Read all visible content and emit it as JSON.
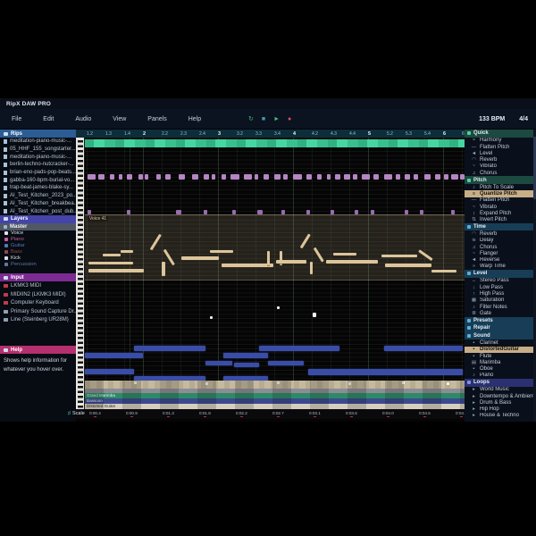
{
  "app": {
    "title": "RipX DAW PRO",
    "bpm": "133 BPM",
    "time_sig": "4/4"
  },
  "menu_items": [
    "File",
    "Edit",
    "Audio",
    "View",
    "Panels",
    "Help"
  ],
  "transport": [
    {
      "name": "loop-button",
      "glyph": "↻",
      "color": "#49b86e"
    },
    {
      "name": "stop-button",
      "glyph": "■",
      "color": "#3f9fae"
    },
    {
      "name": "play-button",
      "glyph": "►",
      "color": "#43c272"
    },
    {
      "name": "record-button",
      "glyph": "●",
      "color": "#d8515e"
    }
  ],
  "left_sidebar": {
    "rips_header": "Rips",
    "rips_header_color": "#2b5c94",
    "rips": [
      "meditation-piano-music-...",
      "05_HHF_155_songstarter...",
      "meditation-piano-music-...",
      "berlin-techno-nutcracker-...",
      "brian-eno-pads-pop-beats...",
      "gabba-160-bpm-burial-vo...",
      "trap-beat-james-blake-sy...",
      "AI_Test_Kitchen_2023_po...",
      "AI_Test_Kitchen_breakbea...",
      "AI_Test_Kitchen_post_dub..."
    ],
    "layers_header": "Layers",
    "layers_header_color": "#4444aa",
    "master": "Master",
    "layers": [
      {
        "label": "Voice",
        "color": "#dde4ee"
      },
      {
        "label": "Piano",
        "color": "#c75f9d"
      },
      {
        "label": "Guitar",
        "color": "#5a77b8"
      },
      {
        "label": "Bass",
        "color": "#8f4848"
      },
      {
        "label": "Kick",
        "color": "#d9dee8"
      },
      {
        "label": "Percussion",
        "color": "#64789e"
      }
    ],
    "input_header": "Input",
    "input_header_color": "#7c2b92",
    "inputs": [
      {
        "label": "LKMK3 MIDI",
        "icon_color": "#c23a4a"
      },
      {
        "label": "MIDIIN2 (LKMK3 MIDI)",
        "icon_color": "#c23a4a"
      },
      {
        "label": "Computer Keyboard",
        "icon_color": "#c23a4a"
      },
      {
        "label": "Primary Sound Capture Dr...",
        "icon_color": "#8fa0b4"
      },
      {
        "label": "Line (Steinberg UR28M)",
        "icon_color": "#8fa0b4"
      }
    ],
    "help_header": "Help",
    "help_header_color": "#b5306f",
    "help_text": "Shows help information for whatever you hover over."
  },
  "right_sidebar": {
    "sections": [
      {
        "header": "Quick",
        "hdr_color": "#1c4a40",
        "ico_color": "#4fd0a0",
        "items": [
          {
            "label": "Harmony",
            "glyph": "≈"
          },
          {
            "label": "Flatten Pitch",
            "glyph": "—"
          },
          {
            "label": "Level",
            "glyph": "◄"
          },
          {
            "label": "Reverb",
            "glyph": "◠"
          },
          {
            "label": "Vibrato",
            "glyph": "~"
          },
          {
            "label": "Chorus",
            "glyph": "♫"
          }
        ]
      },
      {
        "header": "Pitch",
        "hdr_color": "#1c4a40",
        "ico_color": "#4fd0a0",
        "items": [
          {
            "label": "Pitch To Scale",
            "glyph": "♪"
          },
          {
            "label": "Quantize Pitch",
            "glyph": "≡",
            "selected": true
          },
          {
            "label": "Flatten Pitch",
            "glyph": "—"
          },
          {
            "label": "Vibrato",
            "glyph": "~"
          },
          {
            "label": "Expand Pitch",
            "glyph": "↕"
          },
          {
            "label": "Invert Pitch",
            "glyph": "⇅"
          }
        ]
      },
      {
        "header": "Time",
        "hdr_color": "#173e56",
        "ico_color": "#5ab0d8",
        "items": [
          {
            "label": "Reverb",
            "glyph": "◠"
          },
          {
            "label": "Delay",
            "glyph": "≋"
          },
          {
            "label": "Chorus",
            "glyph": "♫"
          },
          {
            "label": "Flanger",
            "glyph": "~"
          },
          {
            "label": "Reverse",
            "glyph": "◄"
          },
          {
            "label": "Warp Time",
            "glyph": "»"
          }
        ]
      },
      {
        "header": "Level",
        "hdr_color": "#173e56",
        "ico_color": "#5ab0d8",
        "items": [
          {
            "label": "Stereo Pass",
            "glyph": "↔"
          },
          {
            "label": "Low Pass",
            "glyph": "↓"
          },
          {
            "label": "High Pass",
            "glyph": "↑"
          },
          {
            "label": "Saturation",
            "glyph": "▦"
          },
          {
            "label": "Filter Notes",
            "glyph": "♪"
          },
          {
            "label": "Gate",
            "glyph": "≣"
          }
        ]
      },
      {
        "header": "Presets",
        "hdr_color": "#173e56",
        "ico_color": "#5ab0d8",
        "items": []
      },
      {
        "header": "Repair",
        "hdr_color": "#173e56",
        "ico_color": "#5ab0d8",
        "items": []
      },
      {
        "header": "Sound",
        "hdr_color": "#173e56",
        "ico_color": "#5ab0d8",
        "items": [
          {
            "label": "Clarinet",
            "glyph": "▪"
          },
          {
            "label": "DistortedGuitar",
            "glyph": "▪",
            "selected": true
          },
          {
            "label": "Flute",
            "glyph": "▪"
          },
          {
            "label": "Marimba",
            "glyph": "▤"
          },
          {
            "label": "Oboe",
            "glyph": "▪"
          },
          {
            "label": "Piano",
            "glyph": "♪"
          }
        ]
      },
      {
        "header": "Loops",
        "hdr_color": "#2a3070",
        "ico_color": "#8090e0",
        "items": [
          {
            "label": "World Music",
            "glyph": "▸"
          },
          {
            "label": "Downtempo & Ambient",
            "glyph": "▸"
          },
          {
            "label": "Drum & Bass",
            "glyph": "▸"
          },
          {
            "label": "Hip Hop",
            "glyph": "▸"
          },
          {
            "label": "House & Techno",
            "glyph": "▸"
          }
        ]
      }
    ]
  },
  "timeline_ticks": [
    "1.2",
    "1.3",
    "1.4",
    "2",
    "2.2",
    "2.3",
    "2.4",
    "3",
    "3.2",
    "3.3",
    "3.4",
    "4",
    "4.2",
    "4.3",
    "4.4",
    "5",
    "5.2",
    "5.3",
    "5.4",
    "6",
    "6.2"
  ],
  "bottom_ruler": {
    "label": "Scale",
    "ticks": [
      "0:00.4",
      "0:00.9",
      "0:01.3",
      "0:01.8",
      "0:02.2",
      "0:02.7",
      "0:03.1",
      "0:03.6",
      "0:04.0",
      "0:04.5",
      "0:04.9"
    ]
  },
  "canvas": {
    "voice_label": "Voice 41",
    "overview_rows": [
      {
        "label": "",
        "bg": "#bfb49b",
        "fg": "#2a241a",
        "h": 9
      },
      {
        "label": "",
        "bg": "#8d8d95",
        "fg": "#202020",
        "h": 5
      },
      {
        "label": "Grand Marimba",
        "bg": "#2e8a66",
        "fg": "#e8f4ee",
        "h": 6
      },
      {
        "label": "Bassoon",
        "bg": "#3b4a8e",
        "fg": "#e8ecf8",
        "h": 5.5
      },
      {
        "label": "Distorted Guitar",
        "bg": "#d6cfc0",
        "fg": "#2a241a",
        "h": 6
      }
    ],
    "notes": {
      "purple1": [
        [
          13,
          41,
          9,
          6
        ],
        [
          25,
          41,
          7,
          6
        ],
        [
          38,
          41,
          5,
          6
        ],
        [
          48,
          41,
          4,
          6
        ],
        [
          57,
          41,
          6,
          6
        ],
        [
          70,
          41,
          5,
          6
        ],
        [
          77,
          41,
          4,
          6
        ],
        [
          90,
          41,
          5,
          6
        ],
        [
          100,
          41,
          6,
          6
        ],
        [
          115,
          41,
          7,
          6
        ],
        [
          130,
          41,
          7,
          6
        ],
        [
          143,
          41,
          6,
          6
        ],
        [
          152,
          41,
          4,
          6
        ],
        [
          163,
          41,
          5,
          6
        ],
        [
          173,
          41,
          10,
          6
        ],
        [
          188,
          41,
          9,
          6
        ],
        [
          200,
          41,
          4,
          6
        ],
        [
          210,
          41,
          6,
          6
        ],
        [
          222,
          41,
          7,
          6
        ],
        [
          232,
          41,
          5,
          6
        ],
        [
          243,
          41,
          10,
          6
        ],
        [
          258,
          41,
          6,
          6
        ],
        [
          270,
          41,
          5,
          6
        ],
        [
          281,
          41,
          4,
          6
        ],
        [
          290,
          41,
          6,
          6
        ],
        [
          300,
          41,
          7,
          6
        ],
        [
          310,
          41,
          5,
          6
        ],
        [
          320,
          41,
          9,
          6
        ],
        [
          333,
          41,
          6,
          6
        ],
        [
          345,
          41,
          9,
          6
        ],
        [
          358,
          41,
          5,
          6
        ],
        [
          368,
          41,
          6,
          6
        ],
        [
          378,
          41,
          5,
          6
        ],
        [
          390,
          41,
          7,
          6
        ],
        [
          402,
          41,
          6,
          6
        ],
        [
          412,
          41,
          5,
          6
        ],
        [
          420,
          41,
          8,
          6
        ],
        [
          430,
          41,
          5,
          6
        ]
      ],
      "purple2": [
        [
          13,
          81,
          4,
          5
        ],
        [
          57,
          81,
          4,
          5
        ],
        [
          112,
          81,
          6,
          5
        ],
        [
          143,
          81,
          4,
          5
        ],
        [
          175,
          81,
          4,
          5
        ],
        [
          203,
          81,
          6,
          5
        ],
        [
          230,
          81,
          4,
          5
        ],
        [
          258,
          81,
          4,
          5
        ],
        [
          285,
          81,
          4,
          5
        ],
        [
          312,
          81,
          4,
          5
        ],
        [
          330,
          81,
          4,
          5
        ],
        [
          368,
          81,
          4,
          5
        ],
        [
          385,
          81,
          4,
          5
        ],
        [
          420,
          81,
          4,
          5
        ]
      ],
      "tan": [
        [
          14,
          147,
          62,
          4
        ],
        [
          14,
          139,
          50,
          3
        ],
        [
          30,
          130,
          20,
          3
        ],
        [
          50,
          126,
          14,
          3
        ],
        [
          84,
          124,
          20,
          3,
          -58
        ],
        [
          99,
          124,
          20,
          3,
          58
        ],
        [
          96,
          139,
          4,
          16
        ],
        [
          118,
          133,
          42,
          4
        ],
        [
          150,
          126,
          26,
          3
        ],
        [
          163,
          141,
          58,
          4
        ],
        [
          214,
          127,
          3,
          16
        ],
        [
          228,
          127,
          3,
          16
        ],
        [
          224,
          137,
          34,
          4
        ],
        [
          252,
          122,
          18,
          3,
          -58
        ],
        [
          267,
          122,
          18,
          3,
          58
        ],
        [
          262,
          139,
          3,
          14
        ],
        [
          280,
          137,
          58,
          4
        ],
        [
          288,
          129,
          26,
          3
        ],
        [
          342,
          131,
          40,
          3
        ],
        [
          346,
          141,
          52,
          4
        ],
        [
          398,
          148,
          28,
          3
        ],
        [
          384,
          125,
          18,
          3,
          35
        ]
      ],
      "blue": [
        [
          65,
          233,
          80,
          6
        ],
        [
          205,
          233,
          90,
          6
        ],
        [
          345,
          233,
          88,
          6
        ],
        [
          10,
          241,
          65,
          6
        ],
        [
          165,
          241,
          50,
          6
        ],
        [
          145,
          250,
          30,
          5
        ],
        [
          177,
          252,
          28,
          5
        ],
        [
          215,
          250,
          40,
          5
        ],
        [
          10,
          259,
          55,
          6
        ],
        [
          260,
          259,
          173,
          7
        ],
        [
          65,
          267,
          80,
          6
        ],
        [
          165,
          267,
          50,
          6
        ]
      ],
      "white": [
        [
          265,
          196,
          4,
          5
        ],
        [
          225,
          189,
          3,
          3
        ],
        [
          150,
          200,
          3,
          3
        ]
      ],
      "dots": [
        [
          55,
          1,
          3,
          3
        ],
        [
          135,
          2,
          3,
          3
        ],
        [
          215,
          1,
          3,
          3
        ],
        [
          295,
          2,
          3,
          3
        ],
        [
          355,
          1,
          3,
          3
        ],
        [
          405,
          2,
          3,
          3
        ]
      ]
    }
  }
}
